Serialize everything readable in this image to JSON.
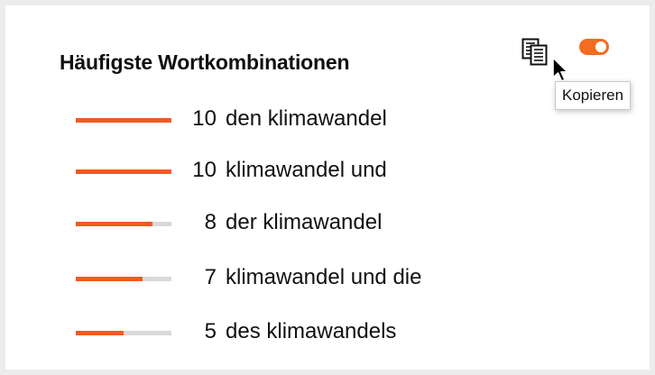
{
  "widget": {
    "title": "Häufigste Wortkombinationen",
    "toggle_on": true,
    "accent_color": "#f15a24",
    "icons": {
      "copy": "copy-icon",
      "cursor": "mouse-pointer-icon"
    },
    "tooltip": "Kopieren"
  },
  "max_count": 10,
  "items": [
    {
      "count": "10",
      "value": 10,
      "phrase": "den klimawandel"
    },
    {
      "count": "10",
      "value": 10,
      "phrase": "klimawandel und"
    },
    {
      "count": "8",
      "value": 8,
      "phrase": "der klimawandel"
    },
    {
      "count": "7",
      "value": 7,
      "phrase": "klimawandel und die"
    },
    {
      "count": "5",
      "value": 5,
      "phrase": "des klimawandels"
    }
  ]
}
